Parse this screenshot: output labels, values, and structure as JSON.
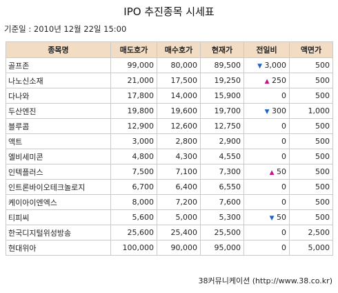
{
  "title": "IPO 추진종목 시세표",
  "basis": "기준일 : 2010년 12월 22일 15:00",
  "headers": [
    "종목명",
    "매도호가",
    "매수호가",
    "현재가",
    "전일비",
    "액면가"
  ],
  "rows": [
    {
      "name": "골프존",
      "ask": "99,000",
      "bid": "80,000",
      "price": "89,500",
      "dir": "down",
      "arrow": "▼",
      "change": "3,000",
      "par": "500"
    },
    {
      "name": "나노신소재",
      "ask": "21,000",
      "bid": "17,500",
      "price": "19,250",
      "dir": "up",
      "arrow": "▲",
      "change": "250",
      "par": "500"
    },
    {
      "name": "다나와",
      "ask": "17,800",
      "bid": "14,000",
      "price": "15,900",
      "dir": "",
      "arrow": "",
      "change": "0",
      "par": "500"
    },
    {
      "name": "두산엔진",
      "ask": "19,800",
      "bid": "19,600",
      "price": "19,700",
      "dir": "down",
      "arrow": "▼",
      "change": "300",
      "par": "1,000"
    },
    {
      "name": "블루콤",
      "ask": "12,900",
      "bid": "12,600",
      "price": "12,750",
      "dir": "",
      "arrow": "",
      "change": "0",
      "par": "500"
    },
    {
      "name": "액트",
      "ask": "3,000",
      "bid": "2,800",
      "price": "2,900",
      "dir": "",
      "arrow": "",
      "change": "0",
      "par": "500"
    },
    {
      "name": "엘비세미콘",
      "ask": "4,800",
      "bid": "4,300",
      "price": "4,550",
      "dir": "",
      "arrow": "",
      "change": "0",
      "par": "500"
    },
    {
      "name": "인텍플러스",
      "ask": "7,500",
      "bid": "7,100",
      "price": "7,300",
      "dir": "up",
      "arrow": "▲",
      "change": "50",
      "par": "500"
    },
    {
      "name": "인트론바이오테크놀로지",
      "ask": "6,700",
      "bid": "6,400",
      "price": "6,550",
      "dir": "",
      "arrow": "",
      "change": "0",
      "par": "500"
    },
    {
      "name": "케이아이엔엑스",
      "ask": "8,000",
      "bid": "7,200",
      "price": "7,600",
      "dir": "",
      "arrow": "",
      "change": "0",
      "par": "500"
    },
    {
      "name": "티피씨",
      "ask": "5,600",
      "bid": "5,000",
      "price": "5,300",
      "dir": "down",
      "arrow": "▼",
      "change": "50",
      "par": "500"
    },
    {
      "name": "한국디지털위성방송",
      "ask": "25,600",
      "bid": "25,400",
      "price": "25,500",
      "dir": "",
      "arrow": "",
      "change": "0",
      "par": "2,500"
    },
    {
      "name": "현대위아",
      "ask": "100,000",
      "bid": "90,000",
      "price": "95,000",
      "dir": "",
      "arrow": "",
      "change": "0",
      "par": "5,000"
    }
  ],
  "source": "38커뮤니케이션 (http://www.38.co.kr)"
}
